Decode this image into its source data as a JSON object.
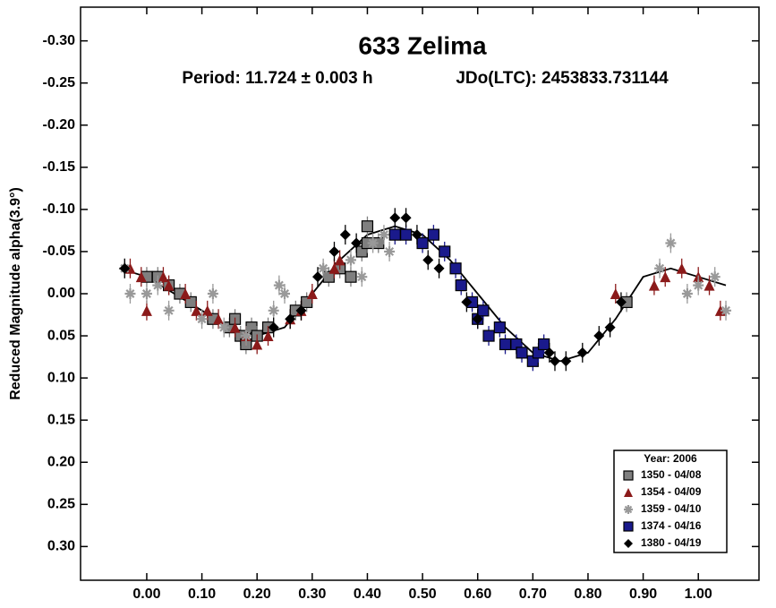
{
  "chart_data": {
    "type": "scatter",
    "title": "633 Zelima",
    "period": "Period: 11.724 ± 0.003 h",
    "epoch": "JDo(LTC): 2453833.731144",
    "y_label": "Reduced Magnitude alpha(3.9°)",
    "xlim": [
      -0.12,
      1.11
    ],
    "ylim": [
      0.34,
      -0.34
    ],
    "xticks": [
      {
        "value": 0,
        "label": "0.00"
      },
      {
        "value": 0.1,
        "label": "0.10"
      },
      {
        "value": 0.2,
        "label": "0.20"
      },
      {
        "value": 0.3,
        "label": "0.30"
      },
      {
        "value": 0.4,
        "label": "0.40"
      },
      {
        "value": 0.5,
        "label": "0.50"
      },
      {
        "value": 0.6,
        "label": "0.60"
      },
      {
        "value": 0.7,
        "label": "0.70"
      },
      {
        "value": 0.8,
        "label": "0.80"
      },
      {
        "value": 0.9,
        "label": "0.90"
      },
      {
        "value": 1,
        "label": "1.00"
      }
    ],
    "yticks": [
      {
        "value": -0.3,
        "label": "-0.30"
      },
      {
        "value": -0.25,
        "label": "-0.25"
      },
      {
        "value": -0.2,
        "label": "-0.20"
      },
      {
        "value": -0.15,
        "label": "-0.15"
      },
      {
        "value": -0.1,
        "label": "-0.10"
      },
      {
        "value": -0.05,
        "label": "-0.05"
      },
      {
        "value": 0,
        "label": "0.00"
      },
      {
        "value": 0.05,
        "label": "0.05"
      },
      {
        "value": 0.1,
        "label": "0.10"
      },
      {
        "value": 0.15,
        "label": "0.15"
      },
      {
        "value": 0.2,
        "label": "0.20"
      },
      {
        "value": 0.25,
        "label": "0.25"
      },
      {
        "value": 0.3,
        "label": "0.30"
      }
    ],
    "legend_title": "Year: 2006",
    "legend": "bottom-right",
    "series": [
      {
        "name": "1350 - 04/08",
        "color": "#7f7f7f",
        "marker": "square",
        "x": [
          0.0,
          0.02,
          0.04,
          0.06,
          0.08,
          0.12,
          0.15,
          0.16,
          0.17,
          0.18,
          0.19,
          0.2,
          0.22,
          0.27,
          0.29,
          0.33,
          0.35,
          0.37,
          0.39,
          0.4,
          0.4,
          0.42,
          0.87
        ],
        "values": [
          -0.02,
          -0.02,
          -0.01,
          0.0,
          0.01,
          0.03,
          0.04,
          0.03,
          0.05,
          0.06,
          0.04,
          0.05,
          0.04,
          0.02,
          0.01,
          -0.02,
          -0.03,
          -0.02,
          -0.05,
          -0.06,
          -0.08,
          -0.06,
          0.01
        ]
      },
      {
        "name": "1354 - 04/09",
        "color": "#8b1a1a",
        "marker": "triangle",
        "x": [
          -0.03,
          -0.01,
          0.0,
          0.03,
          0.04,
          0.07,
          0.09,
          0.11,
          0.13,
          0.16,
          0.18,
          0.2,
          0.22,
          0.26,
          0.28,
          0.3,
          0.34,
          0.35,
          0.85,
          0.92,
          0.94,
          0.97,
          1.0,
          1.02,
          1.04
        ],
        "values": [
          -0.03,
          -0.02,
          0.02,
          -0.02,
          -0.01,
          0.0,
          0.02,
          0.02,
          0.03,
          0.04,
          0.05,
          0.06,
          0.05,
          0.03,
          0.02,
          0.0,
          -0.03,
          -0.04,
          0.0,
          -0.01,
          -0.02,
          -0.03,
          -0.02,
          -0.01,
          0.02
        ]
      },
      {
        "name": "1359 - 04/10",
        "color": "#999999",
        "marker": "asterisk",
        "x": [
          -0.04,
          -0.03,
          0.0,
          0.02,
          0.04,
          0.1,
          0.12,
          0.14,
          0.18,
          0.23,
          0.24,
          0.25,
          0.32,
          0.37,
          0.39,
          0.41,
          0.43,
          0.44,
          0.93,
          0.95,
          0.98,
          1.0,
          1.03,
          1.05
        ],
        "values": [
          -0.03,
          0.0,
          0.0,
          -0.01,
          0.02,
          0.03,
          0.0,
          0.04,
          0.05,
          0.02,
          -0.01,
          0.0,
          -0.03,
          -0.04,
          -0.02,
          -0.06,
          -0.07,
          -0.05,
          -0.03,
          -0.06,
          0.0,
          -0.01,
          -0.02,
          0.02
        ]
      },
      {
        "name": "1374 - 04/16",
        "color": "#1a1a8c",
        "marker": "square",
        "x": [
          0.45,
          0.47,
          0.5,
          0.52,
          0.54,
          0.56,
          0.57,
          0.59,
          0.6,
          0.61,
          0.62,
          0.64,
          0.65,
          0.67,
          0.68,
          0.7,
          0.71,
          0.72
        ],
        "values": [
          -0.07,
          -0.07,
          -0.06,
          -0.07,
          -0.05,
          -0.03,
          -0.01,
          0.01,
          0.03,
          0.02,
          0.05,
          0.04,
          0.06,
          0.06,
          0.07,
          0.08,
          0.07,
          0.06
        ]
      },
      {
        "name": "1380 - 04/19",
        "color": "#000000",
        "marker": "diamond",
        "x": [
          -0.04,
          0.23,
          0.26,
          0.28,
          0.31,
          0.34,
          0.36,
          0.38,
          0.45,
          0.47,
          0.49,
          0.51,
          0.53,
          0.58,
          0.6,
          0.73,
          0.74,
          0.76,
          0.79,
          0.82,
          0.84,
          0.86
        ],
        "values": [
          -0.03,
          0.04,
          0.03,
          0.02,
          -0.02,
          -0.05,
          -0.07,
          -0.06,
          -0.09,
          -0.09,
          -0.07,
          -0.04,
          -0.03,
          0.01,
          0.03,
          0.07,
          0.08,
          0.08,
          0.07,
          0.05,
          0.04,
          0.01
        ]
      }
    ],
    "curve": {
      "color": "#000000",
      "x": [
        -0.05,
        0.0,
        0.05,
        0.1,
        0.15,
        0.2,
        0.25,
        0.3,
        0.35,
        0.4,
        0.45,
        0.5,
        0.55,
        0.6,
        0.65,
        0.7,
        0.75,
        0.8,
        0.85,
        0.9,
        0.95,
        1.0,
        1.05
      ],
      "values": [
        -0.03,
        -0.02,
        0.0,
        0.02,
        0.04,
        0.05,
        0.04,
        0.0,
        -0.04,
        -0.07,
        -0.08,
        -0.07,
        -0.04,
        0.0,
        0.04,
        0.07,
        0.08,
        0.07,
        0.03,
        -0.02,
        -0.03,
        -0.02,
        -0.01
      ]
    }
  }
}
